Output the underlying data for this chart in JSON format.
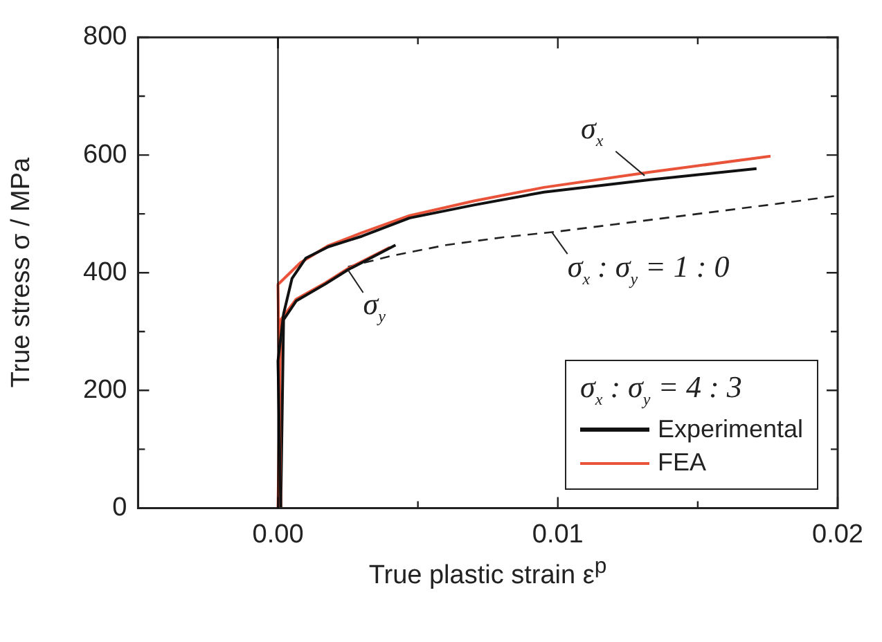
{
  "chart_data": {
    "type": "line",
    "xlabel": "True plastic strain ε$^{p}$",
    "ylabel": "True stress σ / MPa",
    "legend_title": "σ$_{x}$ : σ$_{y}$ = 4 : 3",
    "legend": "bottom right",
    "marker": "none",
    "grid": false,
    "xlim": [
      -0.005,
      0.02
    ],
    "xticks": [
      {
        "value": -0.005,
        "label": null
      },
      {
        "value": 0,
        "label": "0.00"
      },
      {
        "value": 0.005,
        "label": null
      },
      {
        "value": 0.01,
        "label": "0.01"
      },
      {
        "value": 0.015,
        "label": null
      },
      {
        "value": 0.02,
        "label": "0.02"
      }
    ],
    "ylim": [
      0,
      800
    ],
    "yticks": [
      0,
      {
        "value": 100,
        "label": null
      },
      200,
      {
        "value": 300,
        "label": null
      },
      400,
      {
        "value": 500,
        "label": null
      },
      600,
      {
        "value": 700,
        "label": null
      },
      800
    ],
    "ref_lines": [
      {
        "axis": "x",
        "value": 0,
        "color": "#000000"
      }
    ],
    "series": [
      {
        "name": "Experimental",
        "color": "#111111",
        "line_style": "solid",
        "x": [
          0.0001,
          0.0,
          0.0002,
          0.0005,
          0.001,
          0.0018,
          0.003,
          0.0047,
          0.007,
          0.0095,
          0.0133,
          0.0171
        ],
        "values": [
          0,
          250,
          330,
          390,
          425,
          444,
          462,
          493,
          515,
          537,
          558,
          577
        ]
      },
      {
        "name": "FEA",
        "color": "#e8533a",
        "line_style": "solid",
        "x": [
          0.0001,
          0.0,
          0.0008,
          0.0018,
          0.003,
          0.0047,
          0.007,
          0.0095,
          0.0133,
          0.0176
        ],
        "values": [
          0,
          380,
          417,
          446,
          468,
          497,
          522,
          545,
          571,
          598
        ]
      },
      {
        "color": "#111111",
        "line_style": "solid",
        "x": [
          0.0001,
          0.0002,
          0.00065,
          0.0017,
          0.0025,
          0.0042
        ],
        "values": [
          0,
          320,
          352,
          381,
          405,
          447
        ]
      },
      {
        "color": "#e8533a",
        "line_style": "solid",
        "x": [
          0.0,
          0.0001,
          0.00065,
          0.0017,
          0.0025,
          0.004
        ],
        "values": [
          0,
          320,
          355,
          383,
          407,
          443
        ]
      },
      {
        "color": "#222222",
        "line_style": "dashed",
        "x": [
          0.0025,
          0.004,
          0.006,
          0.008,
          0.01,
          0.012,
          0.015,
          0.0175,
          0.02
        ],
        "values": [
          410,
          428,
          447,
          460,
          470,
          482,
          500,
          515,
          531
        ]
      }
    ],
    "annotations": [
      {
        "text": "σ$_{x}$",
        "x": 0.0131,
        "y": 565
      },
      {
        "text": "σ$_{y}$",
        "x": 0.0025,
        "y": 405
      },
      {
        "text": "σ$_{x}$ : σ$_{y}$ = 1 : 0",
        "x": 0.0098,
        "y": 468
      }
    ]
  }
}
